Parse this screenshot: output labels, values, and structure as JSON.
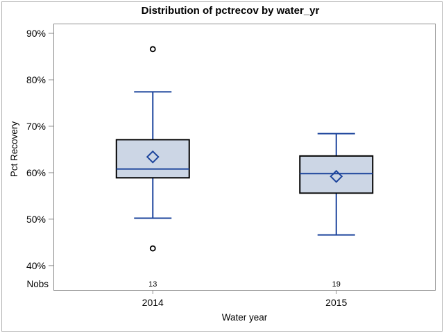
{
  "title": "Distribution of pctrecov by water_yr",
  "chart_data": {
    "type": "boxplot",
    "title": "Distribution of pctrecov by water_yr",
    "xlabel": "Water year",
    "ylabel": "Pct Recovery",
    "categories": [
      "2014",
      "2015"
    ],
    "nobs_label": "Nobs",
    "nobs": [
      13,
      19
    ],
    "ylim": [
      34.6,
      92.1
    ],
    "yticks": [
      40,
      50,
      60,
      70,
      80,
      90
    ],
    "ytick_suffix": "%",
    "grid": false,
    "series": [
      {
        "category": "2014",
        "low_whisker": 50.2,
        "q1": 58.9,
        "median": 60.8,
        "q3": 67.1,
        "high_whisker": 77.4,
        "mean": 63.4,
        "outliers": [
          86.6,
          43.7
        ]
      },
      {
        "category": "2015",
        "low_whisker": 46.6,
        "q1": 55.6,
        "median": 59.8,
        "q3": 63.6,
        "high_whisker": 68.4,
        "mean": 59.2,
        "outliers": []
      }
    ]
  },
  "colors": {
    "box_fill": "#ccd6e5",
    "box_border": "#000000",
    "line": "#1c449c",
    "axis": "#8f8f8f",
    "outer_border": "#b3b3b3",
    "text": "#000000",
    "background": "#ffffff"
  }
}
